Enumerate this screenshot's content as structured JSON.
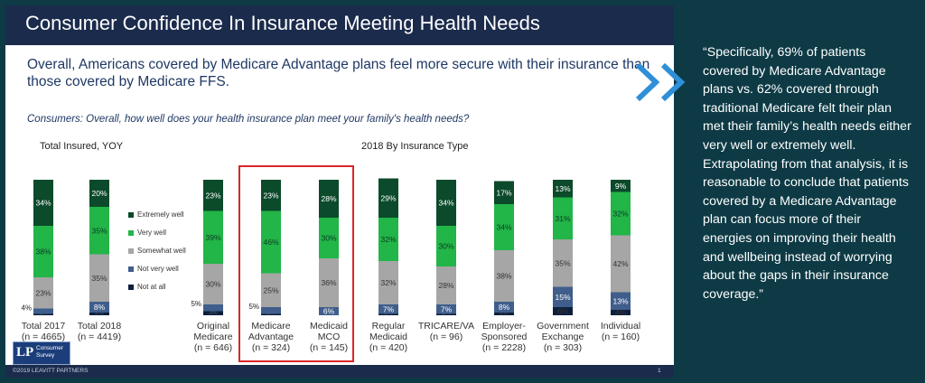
{
  "slide": {
    "title": "Consumer Confidence In Insurance Meeting Health Needs",
    "subtitle": "Overall, Americans covered by Medicare Advantage plans feel more secure with their insurance than those covered  by Medicare FFS.",
    "question": "Consumers: Overall, how well does your health insurance plan meet your family's health needs?",
    "section_yoy": "Total Insured, YOY",
    "section_type": "2018 By Insurance Type",
    "footer": "©2019 LEAVITT PARTNERS",
    "page_number": "1",
    "logo_mark": "LP",
    "logo_text": "Consumer Survey"
  },
  "quote": "“Specifically, 69% of patients covered by Medicare Advantage plans vs. 62% covered through traditional Medicare felt their plan met their family’s health needs either very well or extremely well. Extrapolating from that analysis, it is reasonable to conclude that patients covered by a Medicare Advantage plan can focus more of their energies on improving their health and wellbeing instead of worrying about the gaps in their insurance coverage.”",
  "colors": {
    "extremely_well": "#0b4a2a",
    "very_well": "#22b548",
    "somewhat_well": "#a6a6a6",
    "not_very_well": "#3f5e8c",
    "not_at_all": "#0e1f3d",
    "highlight": "#d9262a",
    "accent": "#2f8fd8"
  },
  "chart_data": {
    "type": "bar",
    "stacked": true,
    "normalized_100": true,
    "legend_position": "inside, between Total 2018 and Original Medicare",
    "categories": [
      {
        "name": "Total 2017",
        "n": "(n = 4665)"
      },
      {
        "name": "Total 2018",
        "n": "(n = 4419)"
      },
      {
        "name": "Original Medicare",
        "n": "(n = 646)"
      },
      {
        "name": "Medicare Advantage",
        "n": "(n = 324)"
      },
      {
        "name": "Medicaid MCO",
        "n": "(n = 145)"
      },
      {
        "name": "Regular Medicaid",
        "n": "(n = 420)"
      },
      {
        "name": "TRICARE/VA",
        "n": "(n = 96)"
      },
      {
        "name": "Employer-Sponsored",
        "n": "(n = 2228)"
      },
      {
        "name": "Government Exchange",
        "n": "(n = 303)"
      },
      {
        "name": "Individual",
        "n": "(n = 160)"
      }
    ],
    "category_labels": [
      [
        "Total 2017"
      ],
      [
        "Total 2018"
      ],
      [
        "Original",
        "Medicare"
      ],
      [
        "Medicare",
        "Advantage"
      ],
      [
        "Medicaid",
        "MCO"
      ],
      [
        "Regular",
        "Medicaid"
      ],
      [
        "TRICARE/VA"
      ],
      [
        "Employer-",
        "Sponsored"
      ],
      [
        "Government",
        "Exchange"
      ],
      [
        "Individual"
      ]
    ],
    "series": [
      {
        "name": "Extremely well",
        "values": [
          34,
          20,
          23,
          23,
          28,
          29,
          34,
          17,
          13,
          9
        ]
      },
      {
        "name": "Very well",
        "values": [
          38,
          35,
          39,
          46,
          30,
          32,
          30,
          34,
          31,
          32
        ]
      },
      {
        "name": "Somewhat well",
        "values": [
          23,
          35,
          30,
          25,
          36,
          32,
          28,
          38,
          35,
          42
        ]
      },
      {
        "name": "Not very well",
        "values": [
          4,
          8,
          5,
          5,
          6,
          7,
          7,
          8,
          15,
          13
        ]
      },
      {
        "name": "Not at all",
        "values": [
          1,
          2,
          3,
          1,
          0,
          1,
          1,
          2,
          6,
          4
        ]
      }
    ],
    "highlighted_categories": [
      "Medicare Advantage",
      "Medicaid MCO"
    ]
  }
}
